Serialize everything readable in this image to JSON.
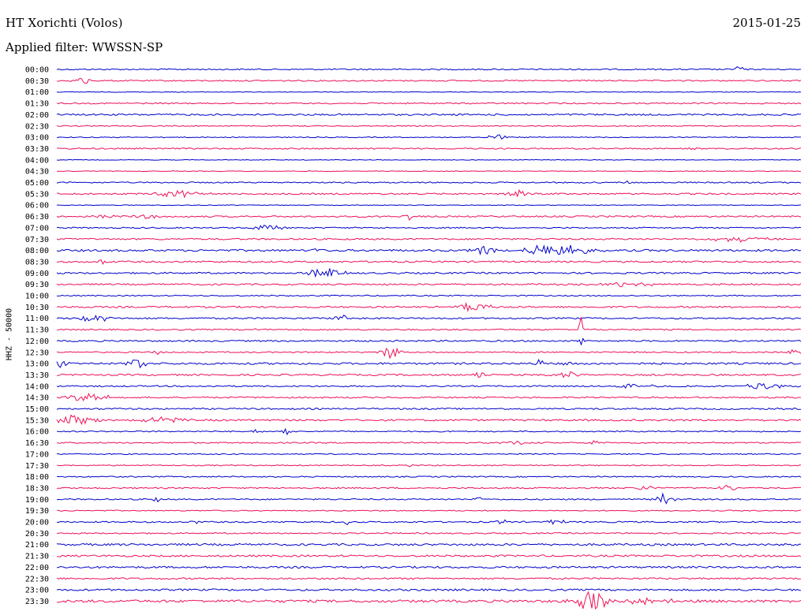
{
  "header": {
    "station": "HT Xorichti (Volos)",
    "date": "2015-01-25",
    "filter": "Applied filter: WWSSN-SP"
  },
  "chart_data": {
    "type": "line",
    "title": "HT Xorichti (Volos)",
    "ylabel": "HHZ - 50000",
    "colors": {
      "even": "#0000cc",
      "odd": "#ee1155"
    },
    "rows": [
      {
        "label": "00:00",
        "noise": 1.0,
        "events": [
          {
            "pos": 0.917,
            "amp": 5,
            "w": 0.004
          }
        ]
      },
      {
        "label": "00:30",
        "noise": 1.0,
        "events": [
          {
            "pos": 0.036,
            "amp": 5,
            "w": 0.006
          }
        ]
      },
      {
        "label": "01:00",
        "noise": 0.5,
        "events": []
      },
      {
        "label": "01:30",
        "noise": 1.0,
        "events": [
          {
            "pos": 0.297,
            "amp": 2,
            "w": 0.002
          }
        ]
      },
      {
        "label": "02:00",
        "noise": 1.3,
        "events": []
      },
      {
        "label": "02:30",
        "noise": 0.8,
        "events": []
      },
      {
        "label": "03:00",
        "noise": 0.7,
        "events": [
          {
            "pos": 0.591,
            "amp": 5,
            "w": 0.008
          }
        ]
      },
      {
        "label": "03:30",
        "noise": 1.0,
        "events": [
          {
            "pos": 0.856,
            "amp": 3,
            "w": 0.003
          }
        ]
      },
      {
        "label": "04:00",
        "noise": 0.5,
        "events": []
      },
      {
        "label": "04:30",
        "noise": 0.5,
        "events": []
      },
      {
        "label": "05:00",
        "noise": 1.0,
        "events": [
          {
            "pos": 0.768,
            "amp": 2,
            "w": 0.002
          }
        ]
      },
      {
        "label": "05:30",
        "noise": 1.2,
        "events": [
          {
            "pos": 0.163,
            "amp": 4,
            "w": 0.02
          },
          {
            "pos": 0.614,
            "amp": 6,
            "w": 0.01
          }
        ]
      },
      {
        "label": "06:00",
        "noise": 0.5,
        "events": []
      },
      {
        "label": "06:30",
        "noise": 1.2,
        "events": [
          {
            "pos": 0.07,
            "amp": 2,
            "w": 0.012
          },
          {
            "pos": 0.119,
            "amp": 3,
            "w": 0.01
          },
          {
            "pos": 0.473,
            "amp": 5,
            "w": 0.004
          }
        ]
      },
      {
        "label": "07:00",
        "noise": 1.0,
        "events": [
          {
            "pos": 0.283,
            "amp": 4,
            "w": 0.012
          }
        ]
      },
      {
        "label": "07:30",
        "noise": 1.2,
        "events": [
          {
            "pos": 0.92,
            "amp": 3,
            "w": 0.03
          }
        ]
      },
      {
        "label": "08:00",
        "noise": 1.6,
        "events": [
          {
            "pos": 0.347,
            "amp": 5,
            "w": 0.004
          },
          {
            "pos": 0.576,
            "amp": 8,
            "w": 0.012
          },
          {
            "pos": 0.668,
            "amp": 8,
            "w": 0.03
          }
        ]
      },
      {
        "label": "08:30",
        "noise": 1.3,
        "events": [
          {
            "pos": 0.062,
            "amp": 4,
            "w": 0.006
          }
        ]
      },
      {
        "label": "09:00",
        "noise": 1.3,
        "events": [
          {
            "pos": 0.36,
            "amp": 6,
            "w": 0.016
          }
        ]
      },
      {
        "label": "09:30",
        "noise": 1.2,
        "events": [
          {
            "pos": 0.77,
            "amp": 4,
            "w": 0.02
          }
        ]
      },
      {
        "label": "10:00",
        "noise": 0.9,
        "events": []
      },
      {
        "label": "10:30",
        "noise": 1.3,
        "events": [
          {
            "pos": 0.562,
            "amp": 6,
            "w": 0.016
          }
        ]
      },
      {
        "label": "11:00",
        "noise": 1.2,
        "events": [
          {
            "pos": 0.045,
            "amp": 4,
            "w": 0.016
          },
          {
            "pos": 0.067,
            "amp": 6,
            "w": 0.004
          },
          {
            "pos": 0.384,
            "amp": 4,
            "w": 0.008
          }
        ]
      },
      {
        "label": "11:30",
        "noise": 1.0,
        "events": [
          {
            "pos": 0.705,
            "amp": 18,
            "w": 0.002
          },
          {
            "pos": 0.265,
            "amp": 3,
            "w": 0.002
          }
        ]
      },
      {
        "label": "12:00",
        "noise": 1.2,
        "events": [
          {
            "pos": 0.705,
            "amp": 10,
            "w": 0.001
          }
        ]
      },
      {
        "label": "12:30",
        "noise": 1.0,
        "events": [
          {
            "pos": 0.135,
            "amp": 3,
            "w": 0.004
          },
          {
            "pos": 0.448,
            "amp": 10,
            "w": 0.008
          },
          {
            "pos": 0.992,
            "amp": 8,
            "w": 0.005
          }
        ]
      },
      {
        "label": "13:00",
        "noise": 1.5,
        "events": [
          {
            "pos": 0.006,
            "amp": 5,
            "w": 0.006
          },
          {
            "pos": 0.109,
            "amp": 7,
            "w": 0.008
          },
          {
            "pos": 0.648,
            "amp": 4,
            "w": 0.006
          },
          {
            "pos": 0.688,
            "amp": 3,
            "w": 0.008
          }
        ]
      },
      {
        "label": "13:30",
        "noise": 1.3,
        "events": [
          {
            "pos": 0.566,
            "amp": 7,
            "w": 0.006
          },
          {
            "pos": 0.686,
            "amp": 4,
            "w": 0.012
          }
        ]
      },
      {
        "label": "14:00",
        "noise": 1.1,
        "events": [
          {
            "pos": 0.77,
            "amp": 3,
            "w": 0.02
          },
          {
            "pos": 0.952,
            "amp": 5,
            "w": 0.016
          }
        ]
      },
      {
        "label": "14:30",
        "noise": 1.1,
        "events": [
          {
            "pos": 0.042,
            "amp": 5,
            "w": 0.02
          }
        ]
      },
      {
        "label": "15:00",
        "noise": 1.2,
        "events": []
      },
      {
        "label": "15:30",
        "noise": 1.4,
        "events": [
          {
            "pos": 0.025,
            "amp": 6,
            "w": 0.02
          },
          {
            "pos": 0.14,
            "amp": 5,
            "w": 0.016
          }
        ]
      },
      {
        "label": "16:00",
        "noise": 0.9,
        "events": [
          {
            "pos": 0.27,
            "amp": 4,
            "w": 0.004
          },
          {
            "pos": 0.308,
            "amp": 5,
            "w": 0.004
          }
        ]
      },
      {
        "label": "16:30",
        "noise": 1.0,
        "events": [
          {
            "pos": 0.617,
            "amp": 3,
            "w": 0.01
          },
          {
            "pos": 0.722,
            "amp": 4,
            "w": 0.003
          }
        ]
      },
      {
        "label": "17:00",
        "noise": 0.8,
        "events": []
      },
      {
        "label": "17:30",
        "noise": 0.8,
        "events": [
          {
            "pos": 0.476,
            "amp": 2,
            "w": 0.004
          }
        ]
      },
      {
        "label": "18:00",
        "noise": 0.9,
        "events": []
      },
      {
        "label": "18:30",
        "noise": 1.1,
        "events": [
          {
            "pos": 0.902,
            "amp": 4,
            "w": 0.008
          },
          {
            "pos": 0.79,
            "amp": 3,
            "w": 0.01
          }
        ]
      },
      {
        "label": "19:00",
        "noise": 1.0,
        "events": [
          {
            "pos": 0.134,
            "amp": 4,
            "w": 0.003
          },
          {
            "pos": 0.567,
            "amp": 5,
            "w": 0.004
          },
          {
            "pos": 0.817,
            "amp": 8,
            "w": 0.008
          }
        ]
      },
      {
        "label": "19:30",
        "noise": 0.8,
        "events": []
      },
      {
        "label": "20:00",
        "noise": 1.1,
        "events": [
          {
            "pos": 0.181,
            "amp": 3,
            "w": 0.006
          },
          {
            "pos": 0.39,
            "amp": 4,
            "w": 0.002
          },
          {
            "pos": 0.6,
            "amp": 4,
            "w": 0.005
          },
          {
            "pos": 0.671,
            "amp": 4,
            "w": 0.008
          }
        ]
      },
      {
        "label": "20:30",
        "noise": 1.0,
        "events": []
      },
      {
        "label": "21:00",
        "noise": 1.6,
        "events": []
      },
      {
        "label": "21:30",
        "noise": 1.5,
        "events": []
      },
      {
        "label": "22:00",
        "noise": 1.5,
        "events": []
      },
      {
        "label": "22:30",
        "noise": 1.3,
        "events": []
      },
      {
        "label": "23:00",
        "noise": 1.5,
        "events": []
      },
      {
        "label": "23:30",
        "noise": 2.0,
        "events": [
          {
            "pos": 0.72,
            "amp": 12,
            "w": 0.016
          },
          {
            "pos": 0.79,
            "amp": 3,
            "w": 0.03
          }
        ]
      }
    ]
  }
}
